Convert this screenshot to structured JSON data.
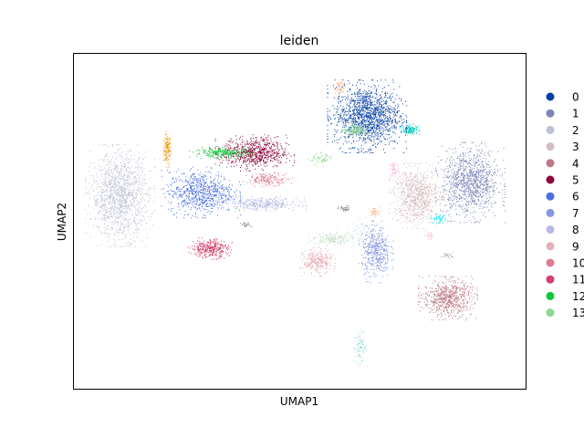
{
  "chart_data": {
    "type": "scatter",
    "title": "leiden",
    "xlabel": "UMAP1",
    "ylabel": "UMAP2",
    "xlim": [
      0,
      100
    ],
    "ylim": [
      0,
      100
    ],
    "grid": false,
    "ticks": false,
    "legend": {
      "placement": "right-outside"
    },
    "series": [
      {
        "name": "0",
        "color": "#023fa5",
        "clusters": [
          {
            "cx": 65,
            "cy": 82,
            "rx": 8,
            "ry": 10,
            "n": 1400
          }
        ]
      },
      {
        "name": "1",
        "color": "#7d87b9",
        "clusters": [
          {
            "cx": 88,
            "cy": 62,
            "rx": 7,
            "ry": 11,
            "n": 1100
          }
        ]
      },
      {
        "name": "2",
        "color": "#bec1d4",
        "clusters": [
          {
            "cx": 10,
            "cy": 58,
            "rx": 7,
            "ry": 14,
            "n": 1300
          }
        ]
      },
      {
        "name": "3",
        "color": "#d6bcc0",
        "clusters": [
          {
            "cx": 76,
            "cy": 58,
            "rx": 5.5,
            "ry": 9,
            "n": 800
          }
        ]
      },
      {
        "name": "4",
        "color": "#bb7784",
        "clusters": [
          {
            "cx": 83,
            "cy": 27,
            "rx": 6,
            "ry": 6,
            "n": 650
          }
        ]
      },
      {
        "name": "5",
        "color": "#8e063b",
        "clusters": [
          {
            "cx": 40,
            "cy": 71,
            "rx": 8,
            "ry": 5,
            "n": 700
          }
        ]
      },
      {
        "name": "6",
        "color": "#4a6fe3",
        "clusters": [
          {
            "cx": 28,
            "cy": 59,
            "rx": 8,
            "ry": 7,
            "n": 750
          }
        ]
      },
      {
        "name": "7",
        "color": "#8595e1",
        "clusters": [
          {
            "cx": 67,
            "cy": 41,
            "rx": 3.5,
            "ry": 8.5,
            "n": 450
          }
        ]
      },
      {
        "name": "8",
        "color": "#b5bbe3",
        "clusters": [
          {
            "cx": 41.5,
            "cy": 55.5,
            "rx": 9,
            "ry": 2,
            "n": 350
          }
        ]
      },
      {
        "name": "9",
        "color": "#e6afb9",
        "clusters": [
          {
            "cx": 54,
            "cy": 38,
            "rx": 3.5,
            "ry": 4,
            "n": 300
          }
        ]
      },
      {
        "name": "10",
        "color": "#e07b91",
        "clusters": [
          {
            "cx": 43,
            "cy": 63,
            "rx": 5,
            "ry": 2,
            "n": 180
          }
        ]
      },
      {
        "name": "11",
        "color": "#d33f6a",
        "clusters": [
          {
            "cx": 30,
            "cy": 42,
            "rx": 4.5,
            "ry": 3,
            "n": 350
          }
        ]
      },
      {
        "name": "12",
        "color": "#11c638",
        "clusters": [
          {
            "cx": 33,
            "cy": 71,
            "rx": 7,
            "ry": 1.6,
            "n": 260
          }
        ]
      },
      {
        "name": "13",
        "color": "#8dd593",
        "clusters": [
          {
            "cx": 62.5,
            "cy": 78,
            "rx": 3,
            "ry": 1.8,
            "n": 160
          },
          {
            "cx": 55,
            "cy": 69,
            "rx": 3,
            "ry": 2,
            "n": 60
          }
        ]
      }
    ],
    "extra_clusters": [
      {
        "color": "#ef9708",
        "cx": 20.5,
        "cy": 72,
        "rx": 0.9,
        "ry": 5,
        "n": 120
      },
      {
        "color": "#0fcfc0",
        "cx": 74.5,
        "cy": 78,
        "rx": 2,
        "ry": 1.6,
        "n": 150
      },
      {
        "color": "#9cded6",
        "cx": 63.5,
        "cy": 12,
        "rx": 1.6,
        "ry": 5,
        "n": 90
      },
      {
        "color": "#d5eae7",
        "cx": 64,
        "cy": 46,
        "rx": 5,
        "ry": 5,
        "n": 120
      },
      {
        "color": "#f0b98d",
        "cx": 59,
        "cy": 91,
        "rx": 1.5,
        "ry": 2,
        "n": 70
      },
      {
        "color": "#f0b98d",
        "cx": 66.5,
        "cy": 53,
        "rx": 1.5,
        "ry": 1.5,
        "n": 40
      },
      {
        "color": "#f6c4e1",
        "cx": 71,
        "cy": 66,
        "rx": 1.2,
        "ry": 3,
        "n": 70
      },
      {
        "color": "#c6dec7",
        "cx": 57,
        "cy": 45,
        "rx": 4.5,
        "ry": 2,
        "n": 170
      },
      {
        "color": "#808080",
        "cx": 60,
        "cy": 54,
        "rx": 1.5,
        "ry": 1,
        "n": 40
      },
      {
        "color": "#808080",
        "cx": 38,
        "cy": 49,
        "rx": 1.3,
        "ry": 1,
        "n": 25
      },
      {
        "color": "#b4b4b4",
        "cx": 83,
        "cy": 40,
        "rx": 1.5,
        "ry": 1,
        "n": 30
      },
      {
        "color": "#1ce6ff",
        "cx": 81,
        "cy": 51,
        "rx": 2,
        "ry": 1.5,
        "n": 60
      },
      {
        "color": "#f6c4e1",
        "cx": 79,
        "cy": 46,
        "rx": 1.5,
        "ry": 1.2,
        "n": 30
      }
    ]
  }
}
